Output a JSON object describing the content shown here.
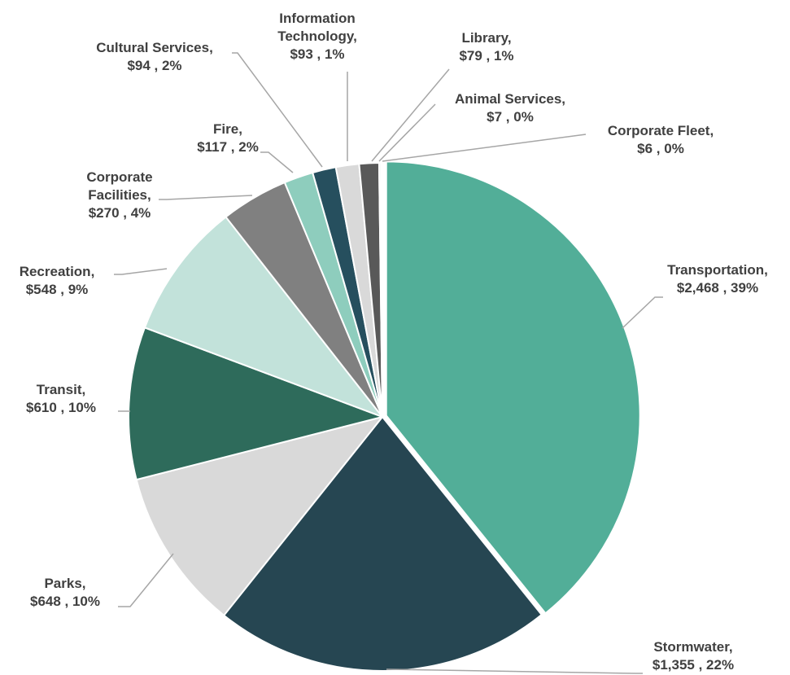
{
  "chart_data": {
    "type": "pie",
    "categories": [
      "Transportation,",
      "Stormwater,",
      "Parks,",
      "Transit,",
      "Recreation,",
      "Corporate Facilities,",
      "Fire,",
      "Cultural Services,",
      "Information Technology,",
      "Library,",
      "Animal Services,",
      "Corporate Fleet,"
    ],
    "values": [
      2468,
      1355,
      648,
      610,
      548,
      270,
      117,
      94,
      93,
      79,
      7,
      6
    ],
    "value_labels": [
      "$2,468 , 39%",
      "$1,355 , 22%",
      "$648 , 10%",
      "$610 , 10%",
      "$548 , 9%",
      "$270 , 4%",
      "$117 , 2%",
      "$94 , 2%",
      "$93 , 1%",
      "$79 , 1%",
      "$7 , 0%",
      "$6 , 0%"
    ],
    "colors": [
      "#52ae98",
      "#264652",
      "#d9d9d9",
      "#2e6b5b",
      "#c2e2da",
      "#808080",
      "#8ecdbd",
      "#264f5e",
      "#d9d9d9",
      "#595959",
      "#52ae98",
      "#264652"
    ]
  }
}
